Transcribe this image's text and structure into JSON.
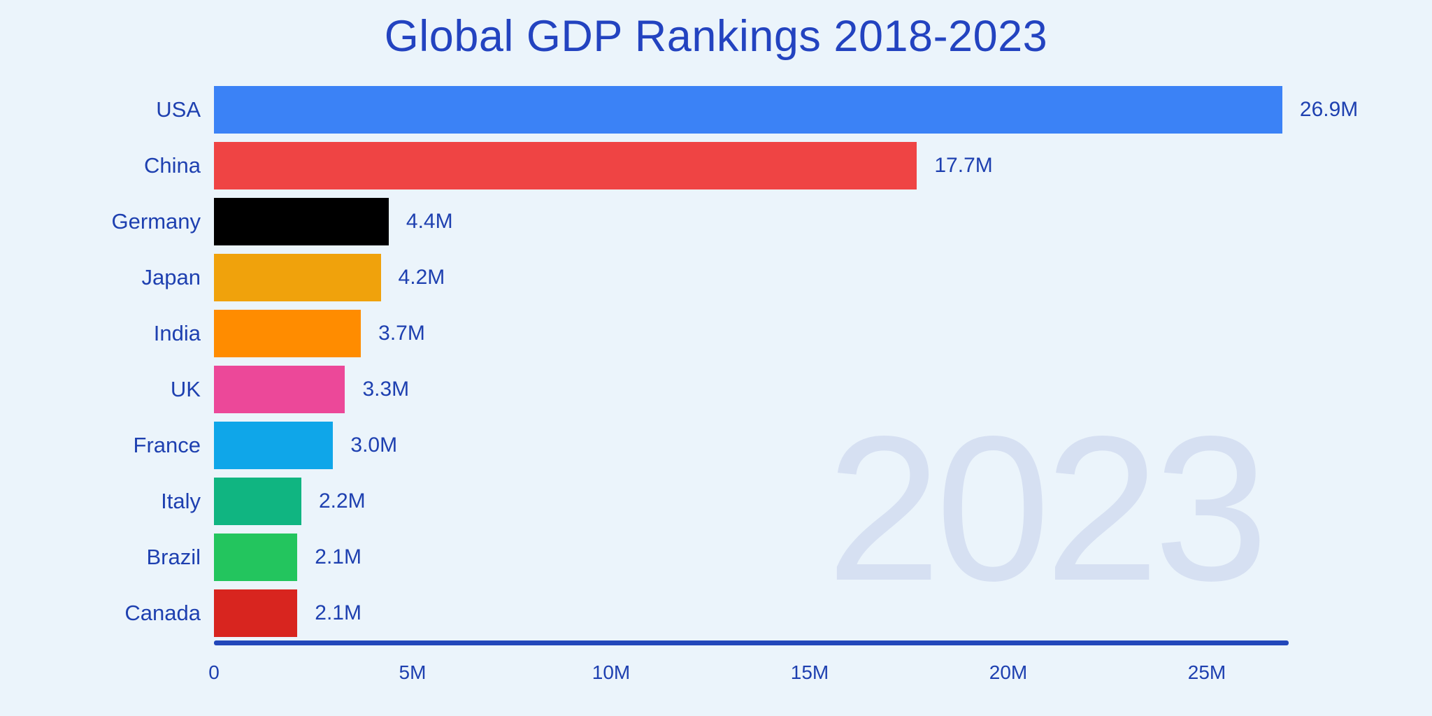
{
  "page": {
    "background": "#ebf4fb"
  },
  "theme": {
    "title_color": "#2343c0",
    "text_color": "#1e40b0",
    "axis_color": "#2247ba",
    "watermark_color": "#d6e0f2"
  },
  "header": {
    "title": "Global GDP Rankings 2018-2023"
  },
  "watermark": {
    "text": "2023"
  },
  "chart_data": {
    "type": "bar",
    "orientation": "horizontal",
    "title": "Global GDP Rankings 2018-2023",
    "year_shown": "2023",
    "categories": [
      "USA",
      "China",
      "Germany",
      "Japan",
      "India",
      "UK",
      "France",
      "Italy",
      "Brazil",
      "Canada"
    ],
    "values": [
      26.9,
      17.7,
      4.4,
      4.2,
      3.7,
      3.3,
      3.0,
      2.2,
      2.1,
      2.1
    ],
    "value_labels": [
      "26.9M",
      "17.7M",
      "4.4M",
      "4.2M",
      "3.7M",
      "3.3M",
      "3.0M",
      "2.2M",
      "2.1M",
      "2.1M"
    ],
    "bar_colors": [
      "#3b82f6",
      "#ef4444",
      "#000000",
      "#f0a20c",
      "#ff8c00",
      "#ec4899",
      "#0fa6e9",
      "#10b581",
      "#23c55e",
      "#d8251f"
    ],
    "x_ticks": [
      {
        "value": 0,
        "label": "0"
      },
      {
        "value": 5,
        "label": "5M"
      },
      {
        "value": 10,
        "label": "10M"
      },
      {
        "value": 15,
        "label": "15M"
      },
      {
        "value": 20,
        "label": "20M"
      },
      {
        "value": 25,
        "label": "25M"
      }
    ],
    "xlim": [
      0,
      27
    ],
    "grid": false,
    "legend": false
  }
}
